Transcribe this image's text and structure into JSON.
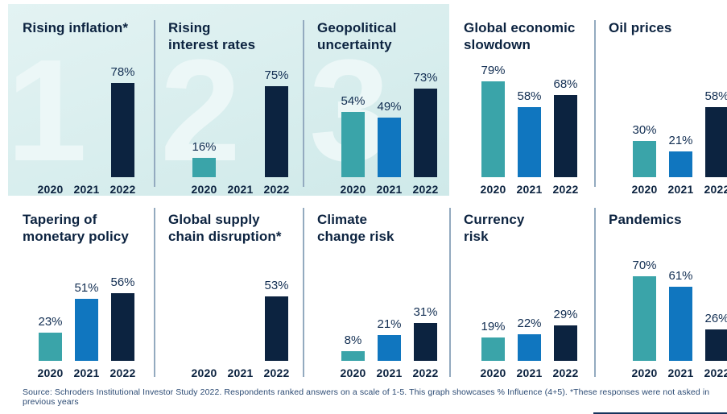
{
  "footer": {
    "text": "Source: Schroders Institutional Investor Study 2022. Respondents ranked answers on a scale of 1-5. This graph showcases % Influence (4+5). *These responses were not asked in previous years"
  },
  "colors": {
    "bar_2020_teal": "#3aa4a9",
    "bar_2021_blue": "#1076bf",
    "bar_2022_navy": "#0c2340",
    "highlight_band": "#d9eeee",
    "watermark": "#ecf7f7",
    "divider": "#93aabf",
    "text_navy": "#0c2340"
  },
  "chart_data": {
    "type": "bar",
    "categories": [
      "2020",
      "2021",
      "2022"
    ],
    "unit": "%",
    "ylim": [
      0,
      100
    ],
    "grid": false,
    "legend": "none",
    "series_colors": [
      "#3aa4a9",
      "#1076bf",
      "#0c2340"
    ],
    "highlight_note": "Top three panels (ranks 1-3) sit on a light teal highlight band with large watermark rank digits",
    "panels": [
      {
        "title": "Rising inflation*",
        "rank_watermark": "1",
        "highlighted": true,
        "values": [
          null,
          null,
          78
        ]
      },
      {
        "title": "Rising\ninterest rates",
        "rank_watermark": "2",
        "highlighted": true,
        "values": [
          16,
          null,
          75
        ]
      },
      {
        "title": "Geopolitical\nuncertainty",
        "rank_watermark": "3",
        "highlighted": true,
        "values": [
          54,
          49,
          73
        ]
      },
      {
        "title": "Global economic\nslowdown",
        "rank_watermark": null,
        "highlighted": false,
        "values": [
          79,
          58,
          68
        ]
      },
      {
        "title": "Oil prices",
        "rank_watermark": null,
        "highlighted": false,
        "values": [
          30,
          21,
          58
        ]
      },
      {
        "title": "Tapering of\nmonetary policy",
        "rank_watermark": null,
        "highlighted": false,
        "values": [
          23,
          51,
          56
        ]
      },
      {
        "title": "Global supply\nchain disruption*",
        "rank_watermark": null,
        "highlighted": false,
        "values": [
          null,
          null,
          53
        ]
      },
      {
        "title": "Climate\nchange risk",
        "rank_watermark": null,
        "highlighted": false,
        "values": [
          8,
          21,
          31
        ]
      },
      {
        "title": "Currency\nrisk",
        "rank_watermark": null,
        "highlighted": false,
        "values": [
          19,
          22,
          29
        ]
      },
      {
        "title": "Pandemics",
        "rank_watermark": null,
        "highlighted": false,
        "values": [
          70,
          61,
          26
        ]
      }
    ]
  }
}
